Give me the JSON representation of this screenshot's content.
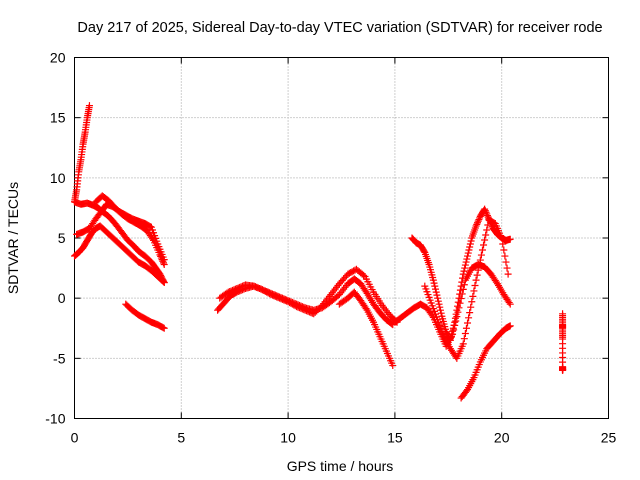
{
  "chart_data": {
    "type": "scatter",
    "title": "Day 217 of 2025, Sidereal Day-to-day VTEC variation (SDTVAR) for receiver rode",
    "xlabel": "GPS time / hours",
    "ylabel": "SDTVAR / TECUs",
    "xlim": [
      0,
      25
    ],
    "ylim": [
      -10,
      20
    ],
    "xticks": [
      "0",
      "5",
      "10",
      "15",
      "20",
      "25"
    ],
    "yticks": [
      "-10",
      "-5",
      "0",
      "5",
      "10",
      "15",
      "20"
    ],
    "grid": true,
    "marker": "+",
    "color": "#ff0000",
    "series": [
      {
        "x": [
          0.0,
          0.1,
          0.2,
          0.3,
          0.4,
          0.5,
          0.6,
          0.7
        ],
        "y": [
          8.0,
          9.0,
          10.5,
          11.5,
          12.8,
          13.8,
          15.0,
          16.0
        ]
      },
      {
        "x": [
          0.0,
          0.3,
          0.6,
          0.9,
          1.1,
          1.3,
          1.6,
          1.9,
          2.2,
          2.5,
          2.8,
          3.0,
          3.3,
          3.6,
          3.8,
          4.0,
          4.2
        ],
        "y": [
          8.0,
          7.8,
          7.9,
          7.7,
          7.5,
          7.2,
          6.8,
          6.2,
          5.5,
          4.8,
          4.3,
          3.9,
          3.5,
          3.0,
          2.5,
          2.0,
          1.3
        ]
      },
      {
        "x": [
          0.1,
          0.4,
          0.7,
          1.0,
          1.3,
          1.5,
          1.8,
          2.1,
          2.4,
          2.7,
          3.0,
          3.3,
          3.6,
          3.9,
          4.2
        ],
        "y": [
          5.3,
          5.5,
          5.8,
          6.6,
          7.3,
          7.8,
          7.6,
          7.2,
          6.9,
          6.6,
          6.4,
          6.2,
          5.9,
          4.5,
          3.2
        ]
      },
      {
        "x": [
          1.0,
          1.3,
          1.6,
          1.9,
          2.2,
          2.5,
          2.8,
          3.1,
          3.4,
          3.7,
          4.0,
          4.2
        ],
        "y": [
          8.0,
          8.5,
          8.1,
          7.5,
          7.0,
          6.6,
          6.3,
          6.0,
          5.6,
          4.8,
          3.6,
          2.8
        ]
      },
      {
        "x": [
          0.0,
          0.2,
          0.4,
          0.6,
          0.8,
          1.0,
          1.2,
          1.5,
          1.8,
          2.1,
          2.4,
          2.7,
          3.0,
          3.3,
          3.6,
          3.9,
          4.2
        ],
        "y": [
          3.5,
          3.8,
          4.2,
          4.8,
          5.4,
          5.8,
          6.0,
          5.5,
          5.0,
          4.5,
          4.0,
          3.5,
          3.0,
          2.7,
          2.3,
          1.8,
          1.3
        ]
      },
      {
        "x": [
          2.4,
          2.7,
          3.0,
          3.3,
          3.6,
          3.9,
          4.2
        ],
        "y": [
          -0.5,
          -1.0,
          -1.4,
          -1.7,
          -2.0,
          -2.2,
          -2.5
        ]
      },
      {
        "x": [
          6.7,
          7.0,
          7.3,
          7.6,
          8.0,
          8.4,
          8.8,
          9.2,
          9.6,
          10.0,
          10.4,
          10.8,
          11.2,
          11.6,
          12.0,
          12.4,
          12.8,
          13.1,
          13.4,
          13.7,
          14.0,
          14.3,
          14.6,
          14.9
        ],
        "y": [
          -1.0,
          -0.4,
          0.2,
          0.5,
          0.8,
          1.0,
          0.7,
          0.4,
          0.1,
          -0.2,
          -0.5,
          -0.8,
          -1.0,
          -0.8,
          -0.3,
          0.3,
          1.2,
          1.6,
          1.2,
          0.4,
          -0.5,
          -1.2,
          -1.8,
          -2.2
        ]
      },
      {
        "x": [
          6.8,
          7.2,
          7.6,
          8.0,
          8.4,
          8.8,
          9.2,
          9.6,
          10.0,
          10.4,
          10.8,
          11.2,
          11.6,
          12.0,
          12.4,
          12.8,
          13.2,
          13.6,
          14.0,
          14.4,
          14.8,
          15.1
        ],
        "y": [
          0.0,
          0.5,
          0.8,
          1.1,
          1.0,
          0.7,
          0.3,
          0.0,
          -0.3,
          -0.7,
          -1.0,
          -1.3,
          -0.6,
          0.3,
          1.2,
          2.0,
          2.4,
          1.8,
          0.5,
          -0.6,
          -1.5,
          -2.0
        ]
      },
      {
        "x": [
          12.4,
          12.8,
          13.1,
          13.4,
          13.7,
          14.0,
          14.3,
          14.6,
          14.9
        ],
        "y": [
          -0.5,
          0.0,
          0.5,
          -0.2,
          -1.0,
          -2.0,
          -3.2,
          -4.4,
          -5.6
        ]
      },
      {
        "x": [
          15.0,
          15.3,
          15.6,
          15.9,
          16.2,
          16.5,
          16.8,
          17.1,
          17.4,
          17.7,
          18.0,
          18.3,
          18.6,
          18.9,
          19.2,
          19.5,
          19.8,
          20.1,
          20.4
        ],
        "y": [
          -2.0,
          -1.6,
          -1.2,
          -0.8,
          -0.5,
          -0.8,
          -1.6,
          -2.8,
          -4.0,
          -3.0,
          -0.8,
          1.5,
          2.5,
          2.8,
          2.6,
          2.0,
          1.2,
          0.3,
          -0.5
        ]
      },
      {
        "x": [
          15.8,
          16.0,
          16.2,
          16.4,
          16.6,
          16.8,
          17.0,
          17.2,
          17.4,
          17.6,
          17.8,
          18.0,
          18.2,
          18.4,
          18.6,
          18.8,
          19.0,
          19.2,
          19.4,
          19.6,
          19.8,
          20.0,
          20.2,
          20.4
        ],
        "y": [
          5.0,
          4.6,
          4.4,
          3.8,
          2.8,
          1.5,
          0.0,
          -1.5,
          -2.8,
          -3.5,
          -2.0,
          0.0,
          2.0,
          3.5,
          5.0,
          6.0,
          6.8,
          7.4,
          6.6,
          5.8,
          5.3,
          5.0,
          4.8,
          4.9
        ]
      },
      {
        "x": [
          16.4,
          16.7,
          17.0,
          17.3,
          17.6,
          17.9,
          18.2,
          18.5,
          18.8,
          19.1,
          19.4,
          19.7,
          20.0,
          20.3
        ],
        "y": [
          1.0,
          -0.4,
          -1.8,
          -3.2,
          -4.2,
          -5.0,
          -3.8,
          -1.2,
          1.5,
          4.0,
          6.5,
          6.2,
          5.0,
          2.0
        ]
      },
      {
        "x": [
          18.1,
          18.4,
          18.7,
          19.0,
          19.3,
          19.6,
          19.9,
          20.2,
          20.4
        ],
        "y": [
          -8.3,
          -7.6,
          -6.6,
          -5.3,
          -4.2,
          -3.6,
          -3.0,
          -2.5,
          -2.3
        ]
      },
      {
        "x": [
          22.85,
          22.85,
          22.85,
          22.85,
          22.85,
          22.85,
          22.85
        ],
        "y": [
          -1.3,
          -2.2,
          -2.5,
          -3.4,
          -5.7,
          -5.9,
          -6.0
        ]
      }
    ]
  }
}
